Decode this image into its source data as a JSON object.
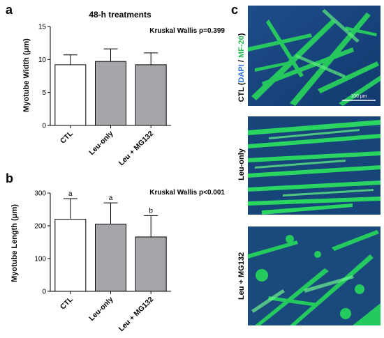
{
  "panel_labels": {
    "a": "a",
    "b": "b",
    "c": "c"
  },
  "chart_data": [
    {
      "type": "bar",
      "panel": "a",
      "title": "48-h treatments",
      "annotation": "Kruskal Wallis p=0.399",
      "ylabel": "Myotube Width (μm)",
      "xlabel": "",
      "ylim": [
        0,
        15
      ],
      "yticks": [
        0,
        5,
        10,
        15
      ],
      "categories": [
        "CTL",
        "Leu-only",
        "Leu + MG132"
      ],
      "values": [
        9.2,
        9.7,
        9.2
      ],
      "errors": [
        1.5,
        1.9,
        1.8
      ],
      "bar_colors": [
        "#ffffff",
        "#a6a6aa",
        "#a6a6aa"
      ],
      "significance_letters": []
    },
    {
      "type": "bar",
      "panel": "b",
      "title": "",
      "annotation": "Kruskal Wallis p<0.001",
      "ylabel": "Myotube Length (μm)",
      "xlabel": "",
      "ylim": [
        0,
        300
      ],
      "yticks": [
        0,
        100,
        200,
        300
      ],
      "categories": [
        "CTL",
        "Leu-only",
        "Leu + MG132"
      ],
      "values": [
        220,
        205,
        166
      ],
      "errors": [
        63,
        65,
        65
      ],
      "bar_colors": [
        "#ffffff",
        "#a6a6aa",
        "#a6a6aa"
      ],
      "significance_letters": [
        "a",
        "a",
        "b"
      ]
    }
  ],
  "micrographs": [
    {
      "row_label": "CTL",
      "row_label_stain_1": "DAPI",
      "row_label_sep": "/",
      "row_label_stain_2": "MF-20",
      "scale_bar": "100 μm"
    },
    {
      "row_label": "Leu-only"
    },
    {
      "row_label": "Leu + MG132"
    }
  ],
  "colors": {
    "dapi_blue": "#2a6de0",
    "mf20_green": "#22e060",
    "nuclei_bg": "#16407a",
    "bar_gray": "#a6a6aa"
  }
}
